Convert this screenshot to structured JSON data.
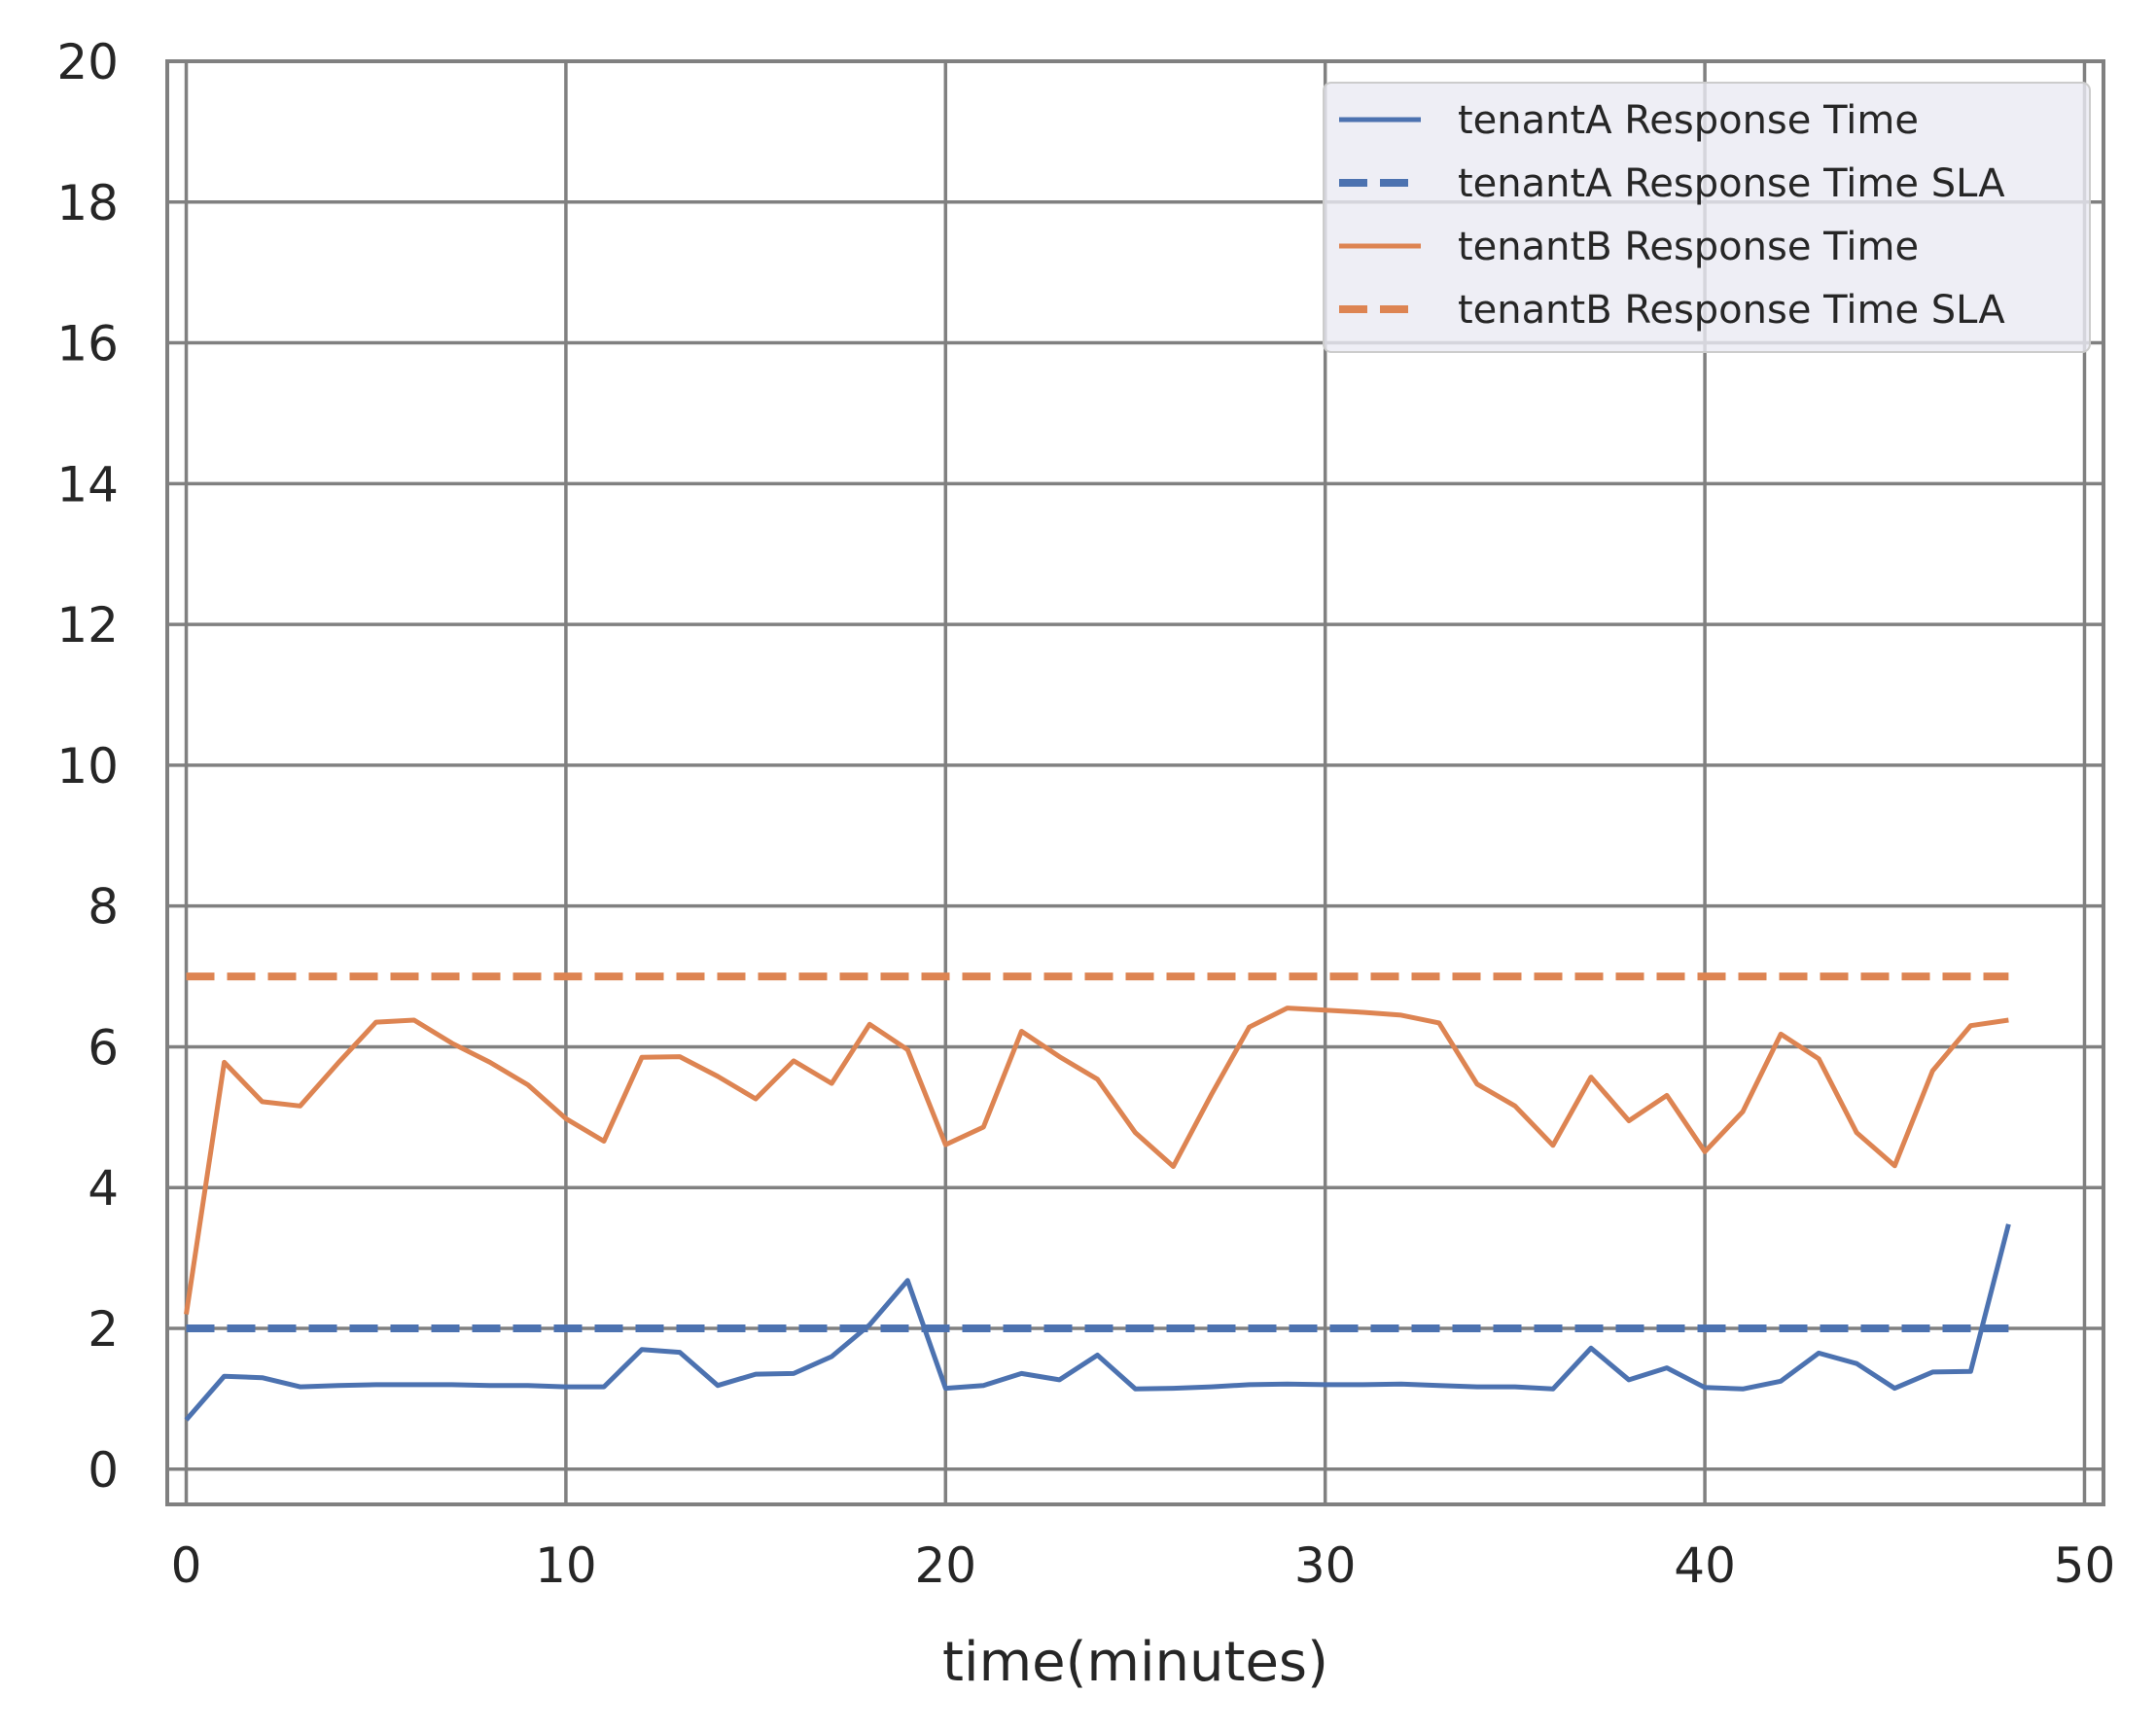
{
  "chart_data": {
    "type": "line",
    "title": "",
    "xlabel": "time(minutes)",
    "ylabel": "",
    "xlim": [
      -0.5,
      50.5
    ],
    "ylim": [
      -0.5,
      20
    ],
    "xticks": [
      "0",
      "10",
      "20",
      "30",
      "40",
      "50"
    ],
    "yticks": [
      "0",
      "2",
      "4",
      "6",
      "8",
      "10",
      "12",
      "14",
      "16",
      "18",
      "20"
    ],
    "grid": true,
    "legend_position": "top-right",
    "x": [
      0,
      1,
      2,
      3,
      4,
      5,
      6,
      7,
      8,
      9,
      10,
      11,
      12,
      13,
      14,
      15,
      16,
      17,
      18,
      19,
      20,
      21,
      22,
      23,
      24,
      25,
      26,
      27,
      28,
      29,
      30,
      31,
      32,
      33,
      34,
      35,
      36,
      37,
      38,
      39,
      40,
      41,
      42,
      43,
      44,
      45,
      46,
      47,
      48
    ],
    "series": [
      {
        "name": "tenantA Response Time",
        "color": "#4c72b0",
        "dash": "solid",
        "values": [
          0.7,
          1.32,
          1.3,
          1.17,
          1.19,
          1.2,
          1.2,
          1.2,
          1.19,
          1.19,
          1.17,
          1.17,
          1.7,
          1.66,
          1.19,
          1.35,
          1.36,
          1.6,
          2.05,
          2.68,
          1.15,
          1.19,
          1.36,
          1.27,
          1.62,
          1.14,
          1.15,
          1.17,
          1.2,
          1.21,
          1.2,
          1.2,
          1.21,
          1.19,
          1.17,
          1.17,
          1.14,
          1.72,
          1.27,
          1.44,
          1.16,
          1.14,
          1.25,
          1.65,
          1.5,
          1.15,
          1.38,
          1.39,
          3.48
        ]
      },
      {
        "name": "tenantA Response Time SLA",
        "color": "#4c72b0",
        "dash": "dashed",
        "values": [
          2,
          2,
          2,
          2,
          2,
          2,
          2,
          2,
          2,
          2,
          2,
          2,
          2,
          2,
          2,
          2,
          2,
          2,
          2,
          2,
          2,
          2,
          2,
          2,
          2,
          2,
          2,
          2,
          2,
          2,
          2,
          2,
          2,
          2,
          2,
          2,
          2,
          2,
          2,
          2,
          2,
          2,
          2,
          2,
          2,
          2,
          2,
          2,
          2
        ]
      },
      {
        "name": "tenantB Response Time",
        "color": "#dd8452",
        "dash": "solid",
        "values": [
          2.2,
          5.78,
          5.22,
          5.16,
          5.77,
          6.35,
          6.38,
          6.05,
          5.78,
          5.46,
          4.98,
          4.66,
          5.85,
          5.86,
          5.58,
          5.26,
          5.8,
          5.48,
          6.32,
          5.96,
          4.61,
          4.86,
          6.22,
          5.86,
          5.54,
          4.78,
          4.3,
          5.32,
          6.28,
          6.55,
          6.52,
          6.49,
          6.45,
          6.34,
          5.47,
          5.16,
          4.6,
          5.57,
          4.95,
          5.31,
          4.51,
          5.08,
          6.18,
          5.83,
          4.78,
          4.31,
          5.66,
          6.3,
          6.38
        ]
      },
      {
        "name": "tenantB Response Time SLA",
        "color": "#dd8452",
        "dash": "dashed",
        "values": [
          7,
          7,
          7,
          7,
          7,
          7,
          7,
          7,
          7,
          7,
          7,
          7,
          7,
          7,
          7,
          7,
          7,
          7,
          7,
          7,
          7,
          7,
          7,
          7,
          7,
          7,
          7,
          7,
          7,
          7,
          7,
          7,
          7,
          7,
          7,
          7,
          7,
          7,
          7,
          7,
          7,
          7,
          7,
          7,
          7,
          7,
          7,
          7,
          7
        ]
      }
    ]
  }
}
